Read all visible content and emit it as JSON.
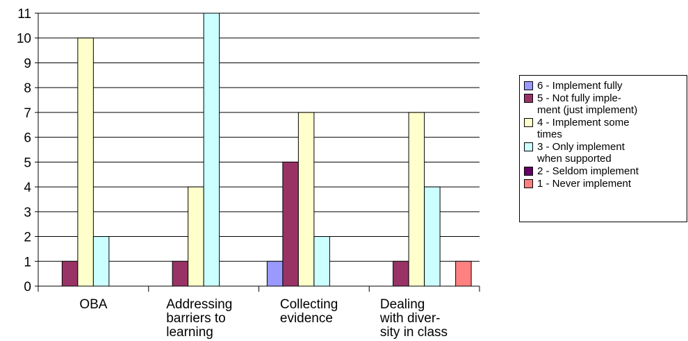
{
  "chart_data": {
    "type": "bar",
    "categories": [
      "OBA",
      "Addressing\nbarriers to\nlearning",
      "Collecting\nevidence",
      "Dealing\nwith diver-\nsity in class"
    ],
    "series": [
      {
        "name": "6 - Implement fully",
        "legend_label": "6 - Implement fully",
        "color": "#9999FF",
        "values": [
          0,
          0,
          1,
          0
        ]
      },
      {
        "name": "5 - Not fully implement (just implement)",
        "legend_label": "5 - Not fully imple-\nment (just implement)",
        "color": "#993366",
        "values": [
          1,
          1,
          5,
          1
        ]
      },
      {
        "name": "4 - Implement some times",
        "legend_label": "4 - Implement some\ntimes",
        "color": "#FFFFCC",
        "values": [
          10,
          4,
          7,
          7
        ]
      },
      {
        "name": "3 - Only implement when supported",
        "legend_label": "3 - Only implement\nwhen supported",
        "color": "#CCFFFF",
        "values": [
          2,
          11,
          2,
          4
        ]
      },
      {
        "name": "2 - Seldom implement",
        "legend_label": "2 - Seldom implement",
        "color": "#660066",
        "values": [
          0,
          0,
          0,
          0
        ]
      },
      {
        "name": "1 - Never implement",
        "legend_label": "1 - Never implement",
        "color": "#FF8080",
        "values": [
          0,
          0,
          0,
          1
        ]
      }
    ],
    "yticks": [
      "0",
      "1",
      "2",
      "3",
      "4",
      "5",
      "6",
      "7",
      "8",
      "9",
      "10",
      "11"
    ],
    "ylim": [
      0,
      11
    ],
    "grid": true,
    "legend": "right"
  }
}
